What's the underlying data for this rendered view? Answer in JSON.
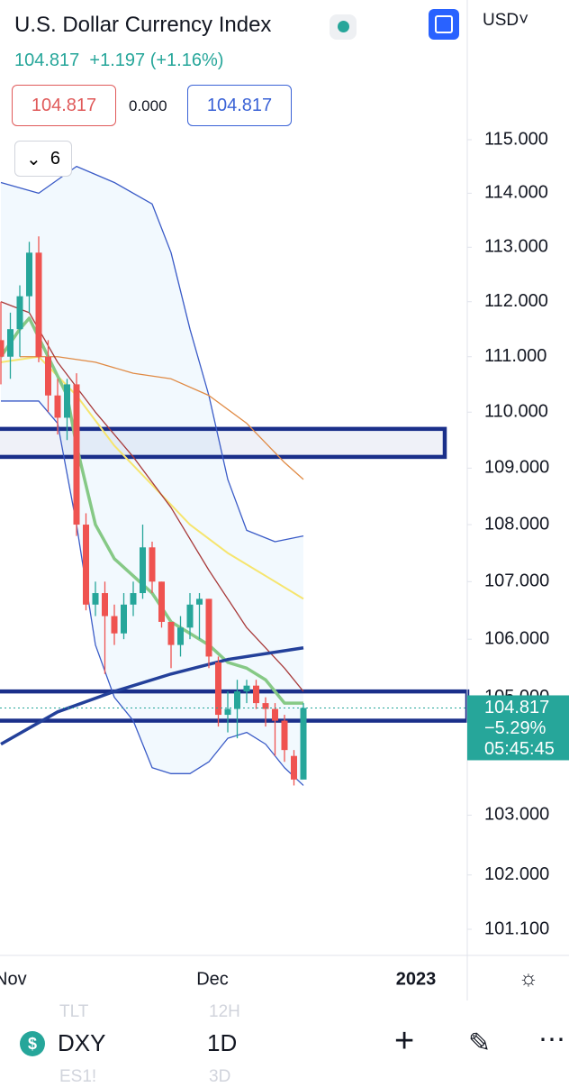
{
  "header": {
    "title": "U.S. Dollar Currency Index",
    "price": "104.817",
    "change": "+1.197 (+1.16%)",
    "sell": "104.817",
    "spread": "0.000",
    "buy": "104.817",
    "indicators_count": "6",
    "currency": "USD"
  },
  "chart_data": {
    "type": "candlestick",
    "log_scale": true,
    "up_color": "#26a69a",
    "down_color": "#ef5350",
    "candles": {
      "open": [
        111.3,
        111.0,
        111.5,
        112.1,
        112.9,
        111.0,
        110.3,
        109.9,
        110.5,
        108.0,
        106.6,
        106.8,
        106.4,
        106.1,
        106.6,
        106.8,
        107.6,
        107.0,
        106.3,
        105.9,
        106.2,
        106.6,
        106.7,
        105.6,
        104.7,
        104.8,
        105.1,
        105.2,
        104.9,
        104.8,
        104.6,
        104.0,
        103.6
      ],
      "high": [
        112.0,
        111.8,
        112.3,
        113.1,
        113.2,
        111.3,
        110.6,
        110.6,
        110.7,
        108.2,
        107.0,
        107.0,
        106.6,
        106.8,
        107.0,
        108.0,
        107.7,
        107.0,
        106.3,
        106.4,
        106.8,
        106.8,
        106.7,
        105.7,
        105.1,
        105.3,
        105.3,
        105.3,
        105.0,
        104.9,
        104.7,
        104.1,
        104.9
      ],
      "low": [
        110.5,
        110.6,
        111.0,
        111.8,
        110.9,
        110.0,
        109.6,
        109.5,
        107.8,
        106.5,
        106.4,
        105.4,
        105.9,
        106.0,
        106.4,
        106.7,
        106.8,
        106.2,
        105.5,
        105.7,
        106.0,
        106.0,
        105.5,
        104.5,
        104.4,
        104.3,
        104.9,
        104.8,
        104.5,
        104.0,
        103.9,
        103.5,
        103.7
      ],
      "close": [
        111.0,
        111.5,
        112.1,
        112.9,
        111.0,
        110.3,
        109.9,
        110.5,
        108.0,
        106.6,
        106.8,
        106.4,
        106.1,
        106.6,
        106.8,
        107.6,
        107.0,
        106.3,
        105.9,
        106.2,
        106.6,
        106.7,
        105.7,
        104.7,
        104.8,
        105.1,
        105.2,
        104.9,
        104.8,
        104.6,
        104.1,
        103.6,
        104.817
      ]
    },
    "overlays": [
      {
        "color": "#3a5bc7",
        "width": 1.3,
        "x": [
          0,
          4,
          8,
          12,
          16,
          18,
          20,
          22,
          24,
          26,
          29,
          32
        ],
        "values": [
          114.2,
          114.0,
          114.5,
          114.2,
          113.8,
          112.9,
          111.5,
          110.3,
          108.8,
          107.9,
          107.7,
          107.8
        ]
      },
      {
        "color": "#3a5bc7",
        "width": 1.3,
        "x": [
          0,
          4,
          6,
          8,
          10,
          12,
          14,
          16,
          18,
          20,
          22,
          24,
          26,
          28,
          30,
          32
        ],
        "values": [
          110.2,
          110.2,
          109.8,
          108.0,
          105.9,
          105.0,
          104.6,
          103.8,
          103.7,
          103.7,
          103.9,
          104.3,
          104.4,
          104.2,
          103.8,
          103.5
        ]
      },
      {
        "color": "#f6e56e",
        "width": 2,
        "x": [
          0,
          4,
          8,
          12,
          16,
          20,
          24,
          28,
          32
        ],
        "values": [
          110.9,
          111.0,
          110.3,
          109.4,
          108.7,
          108.0,
          107.5,
          107.1,
          106.7
        ]
      },
      {
        "color": "#e08a44",
        "width": 1.3,
        "x": [
          2,
          6,
          10,
          14,
          18,
          22,
          26,
          30,
          32
        ],
        "values": [
          111.0,
          111.0,
          110.9,
          110.7,
          110.6,
          110.3,
          109.8,
          109.1,
          108.8
        ]
      },
      {
        "color": "#a83a3a",
        "width": 1.3,
        "x": [
          0,
          3,
          6,
          10,
          14,
          18,
          22,
          26,
          30,
          32
        ],
        "values": [
          112.0,
          111.8,
          110.9,
          110.0,
          109.2,
          108.3,
          107.2,
          106.2,
          105.5,
          105.1
        ]
      },
      {
        "color": "#86c986",
        "width": 3.5,
        "x": [
          0,
          2,
          3,
          5,
          7,
          8,
          10,
          12,
          14,
          16,
          18,
          20,
          22,
          24,
          26,
          28,
          30,
          32
        ],
        "values": [
          111.0,
          111.5,
          111.7,
          111.0,
          110.3,
          109.4,
          108.0,
          107.4,
          107.1,
          106.8,
          106.3,
          106.1,
          105.9,
          105.6,
          105.5,
          105.3,
          104.9,
          104.9
        ]
      },
      {
        "color": "#23409a",
        "width": 3.5,
        "x": [
          0,
          6,
          12,
          18,
          24,
          32
        ],
        "values": [
          104.2,
          104.75,
          105.1,
          105.4,
          105.65,
          105.85
        ]
      }
    ],
    "zones": [
      {
        "low": 109.2,
        "high": 109.7
      },
      {
        "low": 104.6,
        "high": 105.1
      }
    ],
    "ylim": [
      101.1,
      115
    ],
    "yticks": [
      {
        "value": 115,
        "label": "115.000"
      },
      {
        "value": 114,
        "label": "114.000"
      },
      {
        "value": 113,
        "label": "113.000"
      },
      {
        "value": 112,
        "label": "112.000"
      },
      {
        "value": 111,
        "label": "111.000"
      },
      {
        "value": 110,
        "label": "110.000"
      },
      {
        "value": 109,
        "label": "109.000"
      },
      {
        "value": 108,
        "label": "108.000"
      },
      {
        "value": 107,
        "label": "107.000"
      },
      {
        "value": 106,
        "label": "106.000"
      },
      {
        "value": 105,
        "label": "105.000"
      },
      {
        "value": 103,
        "label": "103.000"
      },
      {
        "value": 102,
        "label": "102.000"
      },
      {
        "value": 101.1,
        "label": "101.100"
      }
    ],
    "last_price": {
      "value": 104.817,
      "label": "104.817",
      "change": "−5.29%",
      "countdown": "05:45:45"
    },
    "x_labels": [
      "Nov",
      "Dec",
      "2023"
    ]
  },
  "toolbar": {
    "symbol": "DXY",
    "interval": "1D",
    "faded": [
      "TLT",
      "12H",
      "ES1!",
      "3D"
    ]
  }
}
